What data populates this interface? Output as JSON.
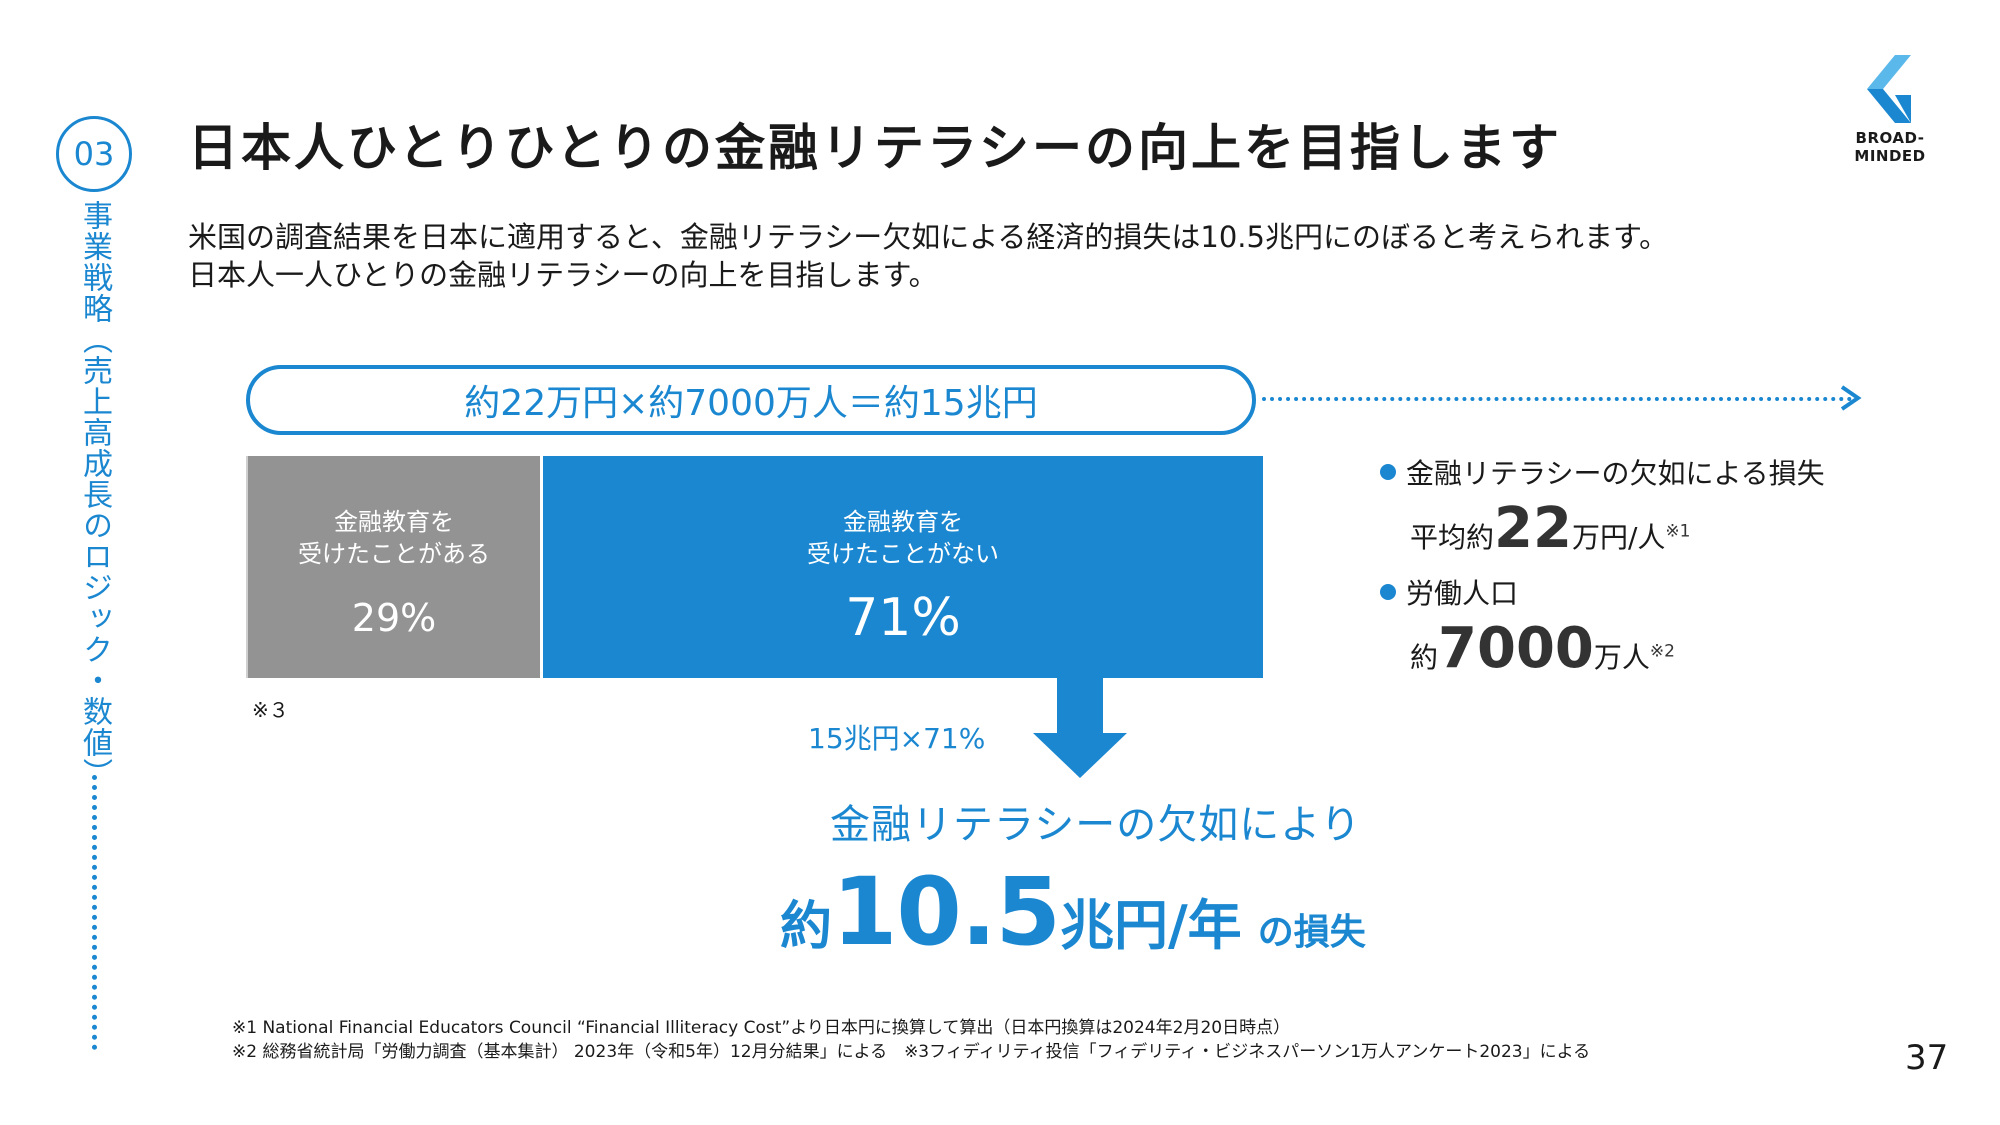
{
  "section": {
    "number": "03",
    "vertical_label": "事業戦略（売上高成長のロジック・数値）"
  },
  "title": "日本人ひとりひとりの金融リテラシーの向上を目指します",
  "logo": {
    "text": "BROAD-MINDED",
    "colors": {
      "dark": "#1a87d0",
      "light": "#5bb8ea"
    }
  },
  "intro": {
    "line1": "米国の調査結果を日本に適用すると、金融リテラシー欠如による経済的損失は10.5兆円にのぼると考えられます。",
    "line2": "日本人一人ひとりの金融リテラシーの向上を目指します。"
  },
  "formula": "約22万円×約7000万人＝約15兆円",
  "bar": {
    "segments": [
      {
        "label": "金融教育を\n受けたことがある",
        "percent_text": "29%",
        "value": 29,
        "color": "#939393"
      },
      {
        "label": "金融教育を\n受けたことがない",
        "percent_text": "71%",
        "value": 71,
        "color": "#1a87d0"
      }
    ],
    "note": "※３"
  },
  "calc_label": "15兆円×71%",
  "loss": {
    "line1": "金融リテラシーの欠如により",
    "prefix": "約",
    "number": "10.5",
    "unit": "兆円/年",
    "suffix": "の損失"
  },
  "facts": [
    {
      "head": "金融リテラシーの欠如による損失",
      "pre": "平均約",
      "big": "22",
      "unit": "万円/人",
      "note": "※1"
    },
    {
      "head": "労働人口",
      "pre": "約",
      "big": "7000",
      "unit": "万人",
      "note": "※2"
    }
  ],
  "footnotes": {
    "line1": "※1 National Financial Educators Council “Financial Illiteracy Cost”より日本円に換算して算出（日本円換算は2024年2月20日時点）",
    "line2": "※2 総務省統計局「労働力調査（基本集計） 2023年（令和5年）12月分結果」による　※3フィディリティ投信「フィデリティ・ビジネスパーソン1万人アンケート2023」による"
  },
  "page_number": "37",
  "accent_color": "#1a87d0"
}
